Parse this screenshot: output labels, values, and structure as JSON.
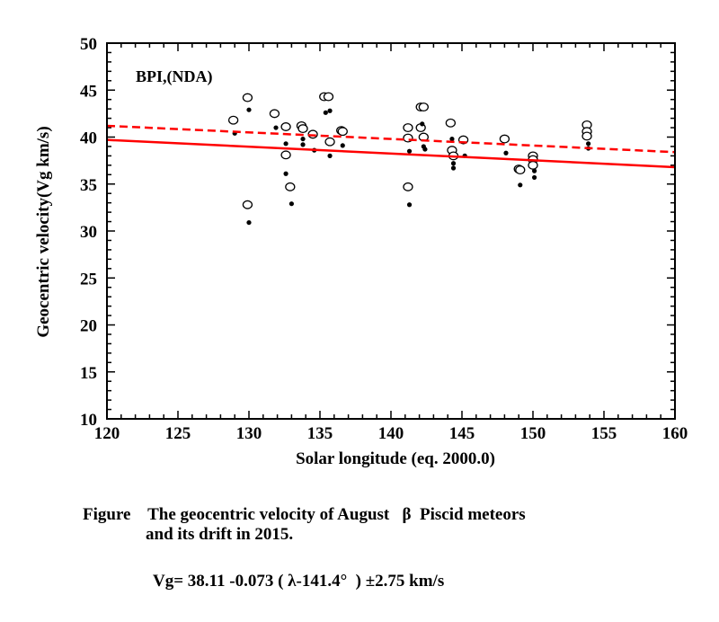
{
  "chart_data": {
    "type": "scatter",
    "title": "",
    "annotation": "BPI,(NDA)",
    "xlabel": "Solar longitude (eq. 2000.0)",
    "ylabel": "Geocentric velocity(Vg km/s)",
    "xlim": [
      120,
      160
    ],
    "ylim": [
      10,
      50
    ],
    "xticks": [
      120,
      125,
      130,
      135,
      140,
      145,
      150,
      155,
      160
    ],
    "yticks": [
      10,
      15,
      20,
      25,
      30,
      35,
      40,
      45,
      50
    ],
    "grid": false,
    "colors": {
      "fit": "#ff0000",
      "points": "#000000"
    },
    "series": [
      {
        "name": "Observed (open circles)",
        "marker": "open-circle",
        "points": [
          [
            128.9,
            41.8
          ],
          [
            129.9,
            44.2
          ],
          [
            129.9,
            32.8
          ],
          [
            131.8,
            42.5
          ],
          [
            132.6,
            41.1
          ],
          [
            132.6,
            38.1
          ],
          [
            132.9,
            34.7
          ],
          [
            133.7,
            41.2
          ],
          [
            133.8,
            40.9
          ],
          [
            134.5,
            40.3
          ],
          [
            135.3,
            44.3
          ],
          [
            135.6,
            44.3
          ],
          [
            135.7,
            39.5
          ],
          [
            136.5,
            40.7
          ],
          [
            136.6,
            40.6
          ],
          [
            141.2,
            41.0
          ],
          [
            141.2,
            39.9
          ],
          [
            141.2,
            34.7
          ],
          [
            142.1,
            43.2
          ],
          [
            142.3,
            43.2
          ],
          [
            142.1,
            41.0
          ],
          [
            142.3,
            40.0
          ],
          [
            144.2,
            41.5
          ],
          [
            144.3,
            38.6
          ],
          [
            144.4,
            38.0
          ],
          [
            145.1,
            39.7
          ],
          [
            148.0,
            39.8
          ],
          [
            149.0,
            36.6
          ],
          [
            149.1,
            36.5
          ],
          [
            150.0,
            38.0
          ],
          [
            150.0,
            37.6
          ],
          [
            150.0,
            37.0
          ],
          [
            153.8,
            41.3
          ],
          [
            153.8,
            40.6
          ],
          [
            153.8,
            40.1
          ]
        ]
      },
      {
        "name": "Corrected (filled dots)",
        "marker": "filled-dot",
        "points": [
          [
            129.0,
            40.4
          ],
          [
            130.0,
            42.9
          ],
          [
            130.0,
            30.9
          ],
          [
            131.9,
            41.0
          ],
          [
            132.6,
            39.3
          ],
          [
            132.6,
            36.1
          ],
          [
            133.0,
            32.9
          ],
          [
            133.8,
            39.8
          ],
          [
            133.8,
            39.2
          ],
          [
            134.6,
            38.6
          ],
          [
            135.4,
            42.6
          ],
          [
            135.7,
            42.8
          ],
          [
            135.7,
            38.0
          ],
          [
            136.6,
            39.1
          ],
          [
            141.3,
            38.5
          ],
          [
            141.3,
            32.8
          ],
          [
            142.2,
            41.4
          ],
          [
            142.3,
            39.0
          ],
          [
            142.4,
            38.7
          ],
          [
            144.3,
            39.8
          ],
          [
            144.4,
            37.2
          ],
          [
            144.4,
            36.7
          ],
          [
            145.2,
            38.0
          ],
          [
            148.1,
            38.3
          ],
          [
            149.1,
            34.9
          ],
          [
            150.1,
            36.4
          ],
          [
            150.1,
            35.7
          ],
          [
            153.9,
            39.3
          ],
          [
            153.9,
            38.8
          ]
        ]
      },
      {
        "name": "Linear fit (solid)",
        "style": "solid",
        "line": [
          [
            120,
            39.7
          ],
          [
            160,
            36.8
          ]
        ]
      },
      {
        "name": "Linear fit (dashed)",
        "style": "dashed",
        "line": [
          [
            120,
            41.2
          ],
          [
            160,
            38.4
          ]
        ]
      }
    ]
  },
  "caption": {
    "line1": "Figure    The geocentric velocity of August   β  Piscid meteors",
    "line2": "and its drift in 2015.",
    "formula": "Vg= 38.11 -0.073 ( λ-141.4°  ) ±2.75 km/s"
  }
}
